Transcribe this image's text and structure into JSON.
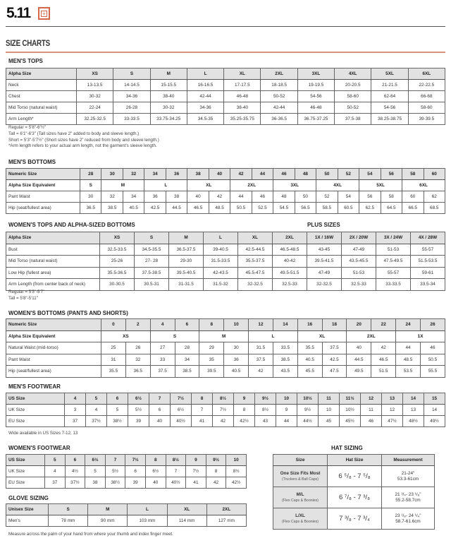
{
  "brand": {
    "logo": "5.11",
    "badge": "+"
  },
  "page_title": "SIZE CHARTS",
  "colors": {
    "accent": "#d6674a",
    "header_bg": "#e2e2e2",
    "rule": "#d9927c"
  },
  "mens_tops": {
    "title": "MEN'S TOPS",
    "rows": [
      [
        "Alpha Size",
        "XS",
        "S",
        "M",
        "L",
        "XL",
        "2XL",
        "3XL",
        "4XL",
        "5XL",
        "6XL"
      ],
      [
        "Neck",
        "13-13.5",
        "14-14.5",
        "15-15.5",
        "16-16.5",
        "17-17.5",
        "18-18.5",
        "19-19.5",
        "20-20.5",
        "21-21.5",
        "22-22.5"
      ],
      [
        "Chest",
        "30-32",
        "34-36",
        "38-40",
        "42-44",
        "46-48",
        "50-52",
        "54-56",
        "58-60",
        "62-64",
        "66-68"
      ],
      [
        "Mid Torso (natural waist)",
        "22-24",
        "26-28",
        "30-32",
        "34-36",
        "38-40",
        "42-44",
        "46-48",
        "50-52",
        "54-56",
        "58-60"
      ],
      [
        "Arm Length*",
        "32.25-32.5",
        "33-33.5",
        "33.75-34.25",
        "34.5-35",
        "35.25-35.75",
        "36-36.5",
        "36.75-37.25",
        "37.5-38",
        "38.25-38.75",
        "39-39.5"
      ]
    ],
    "notes": [
      "Regular = 5'8\"-6'½\"",
      "Tall = 6'1\"-6'3\" (Tall sizes have 2\" added to body and sleeve length.)",
      "Short = 5'3\"-5'7½\" (Short sizes have 2\" reduced from body and sleeve length.)",
      "*Arm length refers to your actual arm length, not the garment's sleeve length."
    ]
  },
  "mens_bottoms": {
    "title": "MEN'S BOTTOMS",
    "rows": [
      [
        "Numeric Size",
        "28",
        "30",
        "32",
        "34",
        "36",
        "38",
        "40",
        "42",
        "44",
        "46",
        "48",
        "50",
        "52",
        "54",
        "56",
        "58",
        "60"
      ],
      [
        "Alpha Size Equivalent",
        {
          "text": "S",
          "cols": 1
        },
        {
          "text": "M",
          "cols": 2
        },
        {
          "text": "L",
          "cols": 2
        },
        {
          "text": "XL",
          "cols": 2
        },
        {
          "text": "2XL",
          "cols": 2
        },
        {
          "text": "3XL",
          "cols": 2
        },
        {
          "text": "4XL",
          "cols": 2
        },
        {
          "text": "5XL",
          "cols": 2
        },
        {
          "text": "6XL",
          "cols": 2
        }
      ],
      [
        "Pant Waist",
        "30",
        "32",
        "34",
        "36",
        "38",
        "40",
        "42",
        "44",
        "46",
        "48",
        "50",
        "52",
        "54",
        "56",
        "58",
        "60",
        "62"
      ],
      [
        "Hip (seat/fullest area)",
        "36.5",
        "38.5",
        "40.5",
        "42.5",
        "44.5",
        "46.5",
        "48.5",
        "50.5",
        "52.5",
        "54.5",
        "56.5",
        "58.5",
        "60.5",
        "62.5",
        "64.5",
        "66.5",
        "68.5"
      ]
    ]
  },
  "womens_tops": {
    "title": "WOMEN'S TOPS AND ALPHA-SIZED BOTTOMS",
    "plus_title": "PLUS SIZES",
    "rows": [
      [
        "Alpha Size",
        "XS",
        "S",
        "M",
        "L",
        "XL",
        "2XL",
        "1X / 16W",
        "2X / 20W",
        "3X / 24W",
        "4X / 28W"
      ],
      [
        "Bust",
        "32.5-33.5",
        "34.5-35.5",
        "36.5-37.5",
        "39-40.5",
        "42.5-44.5",
        "46.5-48.5",
        "43-45",
        "47-49",
        "51-53",
        "55-57"
      ],
      [
        "Mid Torso (natural waist)",
        "25-26",
        "27- 28",
        "29-30",
        "31.5-33.5",
        "35.5-37.5",
        "40-42",
        "39.5-41.5",
        "43.5-45.5",
        "47.5-49.5",
        "51.5-53.5"
      ],
      [
        "Low Hip  (fullest area)",
        "35.5-36.5",
        "37.5-38.5",
        "39.5-40.5",
        "42-43.5",
        "45.5-47.5",
        "49.5-51.5",
        "47-49",
        "51-53",
        "55-57",
        "59-61"
      ],
      [
        "Arm Length (from center back of neck)",
        "30-30.5",
        "30.5-31",
        "31-31.5",
        "31.5-32",
        "32-32.5",
        "32.5-33",
        "32-32.5",
        "32.5-33",
        "33-33.5",
        "33.5-34"
      ]
    ],
    "notes": [
      "Regular = 5'5\"-5'7\"",
      "Tall = 5'8\"-5'11\""
    ]
  },
  "womens_bottoms": {
    "title": "WOMEN'S BOTTOMS (PANTS AND SHORTS)",
    "rows": [
      [
        "Numeric Size",
        "0",
        "2",
        "4",
        "6",
        "8",
        "10",
        "12",
        "14",
        "16",
        "18",
        "20",
        "22",
        "24",
        "26"
      ],
      [
        "Alpha Size Equivalent",
        {
          "text": "XS",
          "cols": 2
        },
        {
          "text": "S",
          "cols": 2
        },
        {
          "text": "M",
          "cols": 2
        },
        {
          "text": "L",
          "cols": 2
        },
        {
          "text": "XL",
          "cols": 2
        },
        {
          "text": "2XL",
          "cols": 2
        },
        {
          "text": "1X",
          "cols": 2
        }
      ],
      [
        "Natural Waist (mid-torso)",
        "25",
        "26",
        "27",
        "28",
        "29",
        "30",
        "31.5",
        "33.5",
        "35.5",
        "37.5",
        "40",
        "42",
        "44",
        "46"
      ],
      [
        "Pant Waist",
        "31",
        "32",
        "33",
        "34",
        "35",
        "36",
        "37.5",
        "38.5",
        "40.5",
        "42.5",
        "44.5",
        "46.5",
        "48.5",
        "50.5"
      ],
      [
        "Hip (seat/fullest area)",
        "35.5",
        "36.5",
        "37.5",
        "38.5",
        "39.5",
        "40.5",
        "42",
        "43.5",
        "45.5",
        "47.5",
        "49.5",
        "51.5",
        "53.5",
        "55.5"
      ]
    ]
  },
  "mens_footwear": {
    "title": "MEN'S FOOTWEAR",
    "rows": [
      [
        "US Size",
        "4",
        "5",
        "6",
        "6½",
        "7",
        "7½",
        "8",
        "8½",
        "9",
        "9½",
        "10",
        "10½",
        "11",
        "11½",
        "12",
        "13",
        "14",
        "15"
      ],
      [
        "UK Size",
        "3",
        "4",
        "5",
        "5½",
        "6",
        "6½",
        "7",
        "7½",
        "8",
        "8½",
        "9",
        "9½",
        "10",
        "10½",
        "11",
        "12",
        "13",
        "14"
      ],
      [
        "EU Size",
        "37",
        "37½",
        "38½",
        "39",
        "40",
        "40½",
        "41",
        "42",
        "42½",
        "43",
        "44",
        "44½",
        "45",
        "45½",
        "46",
        "47½",
        "48½",
        "49½"
      ]
    ],
    "note": "Wide available in US Sizes 7-12, 13"
  },
  "womens_footwear": {
    "title": "WOMEN'S FOOTWEAR",
    "rows": [
      [
        "US Size",
        "5",
        "6",
        "6½",
        "7",
        "7½",
        "8",
        "8½",
        "9",
        "9½",
        "10"
      ],
      [
        "UK Size",
        "4",
        "4½",
        "5",
        "5½",
        "6",
        "6½",
        "7",
        "7½",
        "8",
        "8½"
      ],
      [
        "EU Size",
        "37",
        "37½",
        "38",
        "38½",
        "39",
        "40",
        "40½",
        "41",
        "42",
        "42½"
      ]
    ]
  },
  "glove_sizing": {
    "title": "GLOVE SIZING",
    "rows": [
      [
        "Unisex Size",
        "S",
        "M",
        "L",
        "XL",
        "2XL"
      ],
      [
        "Men's",
        "78 mm",
        "90 mm",
        "103 mm",
        "114 mm",
        "127 mm"
      ]
    ],
    "note": "Measure across the palm of your hand from where your thumb and index finger meet."
  },
  "hat_sizing": {
    "title": "HAT SIZING",
    "headers": [
      "Size",
      "Hat Size",
      "Measurement"
    ],
    "rows": [
      {
        "size": "One Size Fits Most",
        "sub": "(Truckers & Ball Caps)",
        "hat": "6 ⁵/₈ - 7 ⁵/₈",
        "in": "21-24\"",
        "cm": "53.3-61cm"
      },
      {
        "size": "M/L",
        "sub": "(Flex Caps & Boonies)",
        "hat": "6 ⁷/₈ - 7 ³/₈",
        "in": "21 ³/₄- 23 ¹/₈\"",
        "cm": "55.2-58.7cm"
      },
      {
        "size": "L/XL",
        "sub": "(Flex Caps & Boonies)",
        "hat": "7 ³/₈ - 7 ³/₄",
        "in": "23 ¹/₈- 24 ¹/₄\"",
        "cm": "58.7-61.6cm"
      }
    ]
  }
}
